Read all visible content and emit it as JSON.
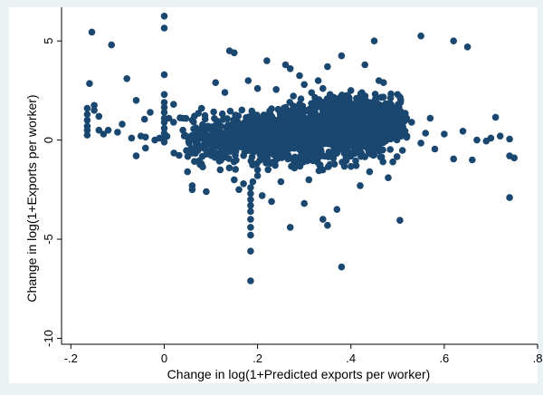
{
  "chart_data": {
    "type": "scatter",
    "title": "",
    "xlabel": "Change in log(1+Predicted exports per worker)",
    "ylabel": "Change in log(1+Exports per worker)",
    "xlim": [
      -0.22,
      0.8
    ],
    "ylim": [
      -10.3,
      6.7
    ],
    "x_ticks": [
      -0.2,
      0,
      0.2,
      0.4,
      0.6,
      0.8
    ],
    "x_tick_labels": [
      "-.2",
      "0",
      ".2",
      ".4",
      ".6",
      ".8"
    ],
    "y_ticks": [
      -10,
      -5,
      0,
      5
    ],
    "y_tick_labels": [
      "-10",
      "-5",
      "0",
      "5"
    ],
    "grid": false,
    "legend": "none",
    "colors": {
      "marker": "#1a476f",
      "plot_bg": "#ffffff",
      "outer_bg": "#eaf2f3",
      "axis": "#000000"
    },
    "points": [
      [
        -0.155,
        5.45
      ],
      [
        -0.113,
        4.8
      ],
      [
        0.0,
        6.25
      ],
      [
        0.0,
        5.65
      ],
      [
        -0.16,
        2.85
      ],
      [
        0.0,
        3.3
      ],
      [
        -0.08,
        3.1
      ],
      [
        -0.06,
        2.0
      ],
      [
        -0.03,
        1.4
      ],
      [
        0.0,
        2.3
      ],
      [
        0.55,
        5.25
      ],
      [
        0.62,
        5.0
      ],
      [
        0.65,
        4.7
      ],
      [
        0.45,
        5.0
      ],
      [
        0.38,
        4.25
      ],
      [
        0.43,
        3.8
      ],
      [
        0.35,
        3.7
      ],
      [
        0.33,
        3.0
      ],
      [
        0.29,
        3.25
      ],
      [
        0.27,
        3.6
      ],
      [
        0.22,
        4.0
      ],
      [
        0.26,
        3.8
      ],
      [
        0.14,
        4.5
      ],
      [
        0.15,
        4.4
      ],
      [
        0.18,
        3.0
      ],
      [
        0.11,
        2.9
      ],
      [
        0.13,
        2.4
      ],
      [
        0.2,
        2.6
      ],
      [
        0.24,
        2.55
      ],
      [
        0.3,
        2.8
      ],
      [
        0.34,
        2.6
      ],
      [
        0.4,
        2.5
      ],
      [
        0.46,
        3.0
      ],
      [
        0.47,
        2.9
      ],
      [
        0.5,
        2.3
      ],
      [
        0.71,
        1.15
      ],
      [
        0.72,
        0.2
      ],
      [
        0.74,
        0.05
      ],
      [
        0.75,
        -0.9
      ],
      [
        0.74,
        -0.8
      ],
      [
        0.74,
        -2.9
      ],
      [
        0.69,
        -0.05
      ],
      [
        0.66,
        -1.0
      ],
      [
        0.62,
        -0.95
      ],
      [
        0.58,
        -0.45
      ],
      [
        0.55,
        -0.15
      ],
      [
        0.52,
        0.2
      ],
      [
        0.56,
        0.35
      ],
      [
        0.6,
        0.3
      ],
      [
        0.64,
        0.45
      ],
      [
        0.67,
        0.0
      ],
      [
        0.7,
        0.1
      ],
      [
        0.53,
        0.9
      ],
      [
        0.57,
        1.1
      ],
      [
        0.505,
        -4.05
      ],
      [
        0.38,
        -6.4
      ],
      [
        0.37,
        -3.5
      ],
      [
        0.34,
        -4.0
      ],
      [
        0.35,
        -4.3
      ],
      [
        0.27,
        -4.4
      ],
      [
        0.23,
        -3.1
      ],
      [
        0.3,
        -3.2
      ],
      [
        0.31,
        -2.0
      ],
      [
        0.25,
        -2.1
      ],
      [
        0.42,
        -2.3
      ],
      [
        0.44,
        -1.6
      ],
      [
        0.48,
        -1.9
      ],
      [
        0.49,
        -1.1
      ],
      [
        0.185,
        -7.1
      ],
      [
        0.185,
        -5.6
      ],
      [
        0.185,
        -4.8
      ],
      [
        0.185,
        -4.4
      ],
      [
        0.185,
        -4.0
      ],
      [
        0.185,
        -3.6
      ],
      [
        0.185,
        -3.3
      ],
      [
        0.185,
        -3.0
      ],
      [
        0.185,
        -2.7
      ],
      [
        0.185,
        -2.4
      ],
      [
        0.19,
        -2.1
      ],
      [
        0.2,
        -1.8
      ],
      [
        0.2,
        -1.5
      ],
      [
        0.16,
        -2.5
      ],
      [
        0.17,
        -2.2
      ],
      [
        0.15,
        -2.0
      ],
      [
        0.21,
        -2.8
      ],
      [
        0.06,
        -2.5
      ],
      [
        0.06,
        -2.3
      ],
      [
        0.09,
        -2.6
      ],
      [
        0.12,
        -1.5
      ],
      [
        0.05,
        -1.6
      ],
      [
        0.08,
        -1.2
      ],
      [
        -0.165,
        1.6
      ],
      [
        -0.165,
        1.3
      ],
      [
        -0.165,
        1.0
      ],
      [
        -0.165,
        0.7
      ],
      [
        -0.165,
        0.5
      ],
      [
        -0.165,
        0.25
      ],
      [
        -0.15,
        1.75
      ],
      [
        -0.15,
        1.5
      ],
      [
        -0.14,
        1.2
      ],
      [
        -0.14,
        0.5
      ],
      [
        -0.13,
        0.3
      ],
      [
        -0.12,
        0.5
      ],
      [
        -0.1,
        0.4
      ],
      [
        -0.09,
        0.8
      ],
      [
        -0.07,
        0.1
      ],
      [
        -0.06,
        -0.8
      ],
      [
        -0.05,
        0.2
      ],
      [
        -0.04,
        0.15
      ],
      [
        -0.02,
        0.0
      ],
      [
        -0.01,
        0.1
      ],
      [
        0.0,
        0.1
      ],
      [
        0.0,
        0.35
      ],
      [
        0.0,
        0.6
      ],
      [
        0.0,
        0.9
      ],
      [
        0.0,
        1.1
      ],
      [
        0.0,
        1.4
      ],
      [
        0.0,
        1.65
      ],
      [
        0.0,
        1.9
      ],
      [
        0.0,
        -0.1
      ],
      [
        0.01,
        1.1
      ],
      [
        0.02,
        1.8
      ],
      [
        0.02,
        0.9
      ],
      [
        0.04,
        0.5
      ],
      [
        0.04,
        1.1
      ],
      [
        0.06,
        1.0
      ],
      [
        0.08,
        1.6
      ],
      [
        -0.04,
        -0.4
      ]
    ],
    "clusters": [
      {
        "cx": 0.33,
        "cy": 0.6,
        "sx": 0.085,
        "sy": 0.45,
        "n": 900
      },
      {
        "cx": 0.44,
        "cy": 0.9,
        "sx": 0.04,
        "sy": 0.55,
        "n": 520
      },
      {
        "cx": 0.22,
        "cy": 0.25,
        "sx": 0.06,
        "sy": 0.6,
        "n": 380
      },
      {
        "cx": 0.11,
        "cy": 0.0,
        "sx": 0.045,
        "sy": 0.5,
        "n": 140
      },
      {
        "cx": 0.3,
        "cy": -0.5,
        "sx": 0.08,
        "sy": 0.55,
        "n": 220
      },
      {
        "cx": 0.38,
        "cy": 1.6,
        "sx": 0.06,
        "sy": 0.45,
        "n": 160
      }
    ]
  }
}
